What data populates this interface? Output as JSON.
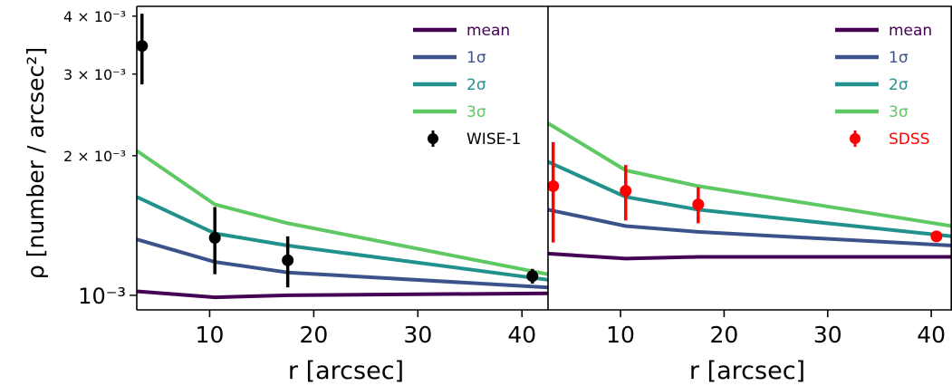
{
  "chart_data": {
    "type": "line",
    "ylabel": "ρ [number / arcsec²]",
    "ylog": true,
    "ylim": [
      0.00093,
      0.0042
    ],
    "ytick_labels": [
      {
        "value": 0.004,
        "label": "4 × 10⁻³"
      },
      {
        "value": 0.003,
        "label": "3 × 10⁻³"
      },
      {
        "value": 0.002,
        "label": "2 × 10⁻³"
      },
      {
        "value": 0.001,
        "label": "10⁻³"
      }
    ],
    "colors": {
      "mean": "#440154",
      "1sigma": "#3b528b",
      "2sigma": "#21918c",
      "3sigma": "#5ec962"
    },
    "panels": [
      {
        "xlabel": "r [arcsec]",
        "xlim": [
          3,
          42.5
        ],
        "xticks": [
          10,
          20,
          30,
          40
        ],
        "legend_position": "upper-right",
        "series": [
          {
            "name": "mean",
            "x": [
              3,
              10.5,
              17.5,
              42.5
            ],
            "y": [
              0.00102,
              0.00099,
              0.001,
              0.00101
            ]
          },
          {
            "name": "1σ",
            "x": [
              3,
              10.5,
              17.5,
              42.5
            ],
            "y": [
              0.00132,
              0.00118,
              0.00112,
              0.00104
            ]
          },
          {
            "name": "2σ",
            "x": [
              3,
              10.5,
              17.5,
              42.5
            ],
            "y": [
              0.00163,
              0.00136,
              0.00128,
              0.00108
            ]
          },
          {
            "name": "3σ",
            "x": [
              3,
              10.5,
              17.5,
              42.5
            ],
            "y": [
              0.00205,
              0.00157,
              0.00143,
              0.00111
            ]
          }
        ],
        "observed": {
          "name": "WISE-1",
          "color": "#000000",
          "x": [
            3.5,
            10.5,
            17.5,
            41
          ],
          "y": [
            0.00345,
            0.00133,
            0.00119,
            0.0011
          ],
          "yerr": [
            0.0006,
            0.00022,
            0.00015,
            4e-05
          ]
        }
      },
      {
        "xlabel": "r [arcsec]",
        "xlim": [
          3,
          42
        ],
        "xticks": [
          10,
          20,
          30,
          40
        ],
        "legend_position": "upper-right",
        "series": [
          {
            "name": "mean",
            "x": [
              3,
              10.5,
              17.5,
              42
            ],
            "y": [
              0.00123,
              0.0012,
              0.00121,
              0.00121
            ]
          },
          {
            "name": "1σ",
            "x": [
              3,
              10.5,
              17.5,
              42
            ],
            "y": [
              0.00153,
              0.00141,
              0.00137,
              0.00128
            ]
          },
          {
            "name": "2σ",
            "x": [
              3,
              10.5,
              17.5,
              42
            ],
            "y": [
              0.00194,
              0.00163,
              0.00153,
              0.00134
            ]
          },
          {
            "name": "3σ",
            "x": [
              3,
              10.5,
              17.5,
              42
            ],
            "y": [
              0.00235,
              0.00186,
              0.00172,
              0.00141
            ]
          }
        ],
        "observed": {
          "name": "SDSS",
          "color": "#ff0000",
          "x": [
            3.5,
            10.5,
            17.5,
            40.5
          ],
          "y": [
            0.00172,
            0.00168,
            0.00157,
            0.00134
          ],
          "yerr": [
            0.00042,
            0.00023,
            0.00014,
            2e-05
          ]
        }
      }
    ]
  }
}
